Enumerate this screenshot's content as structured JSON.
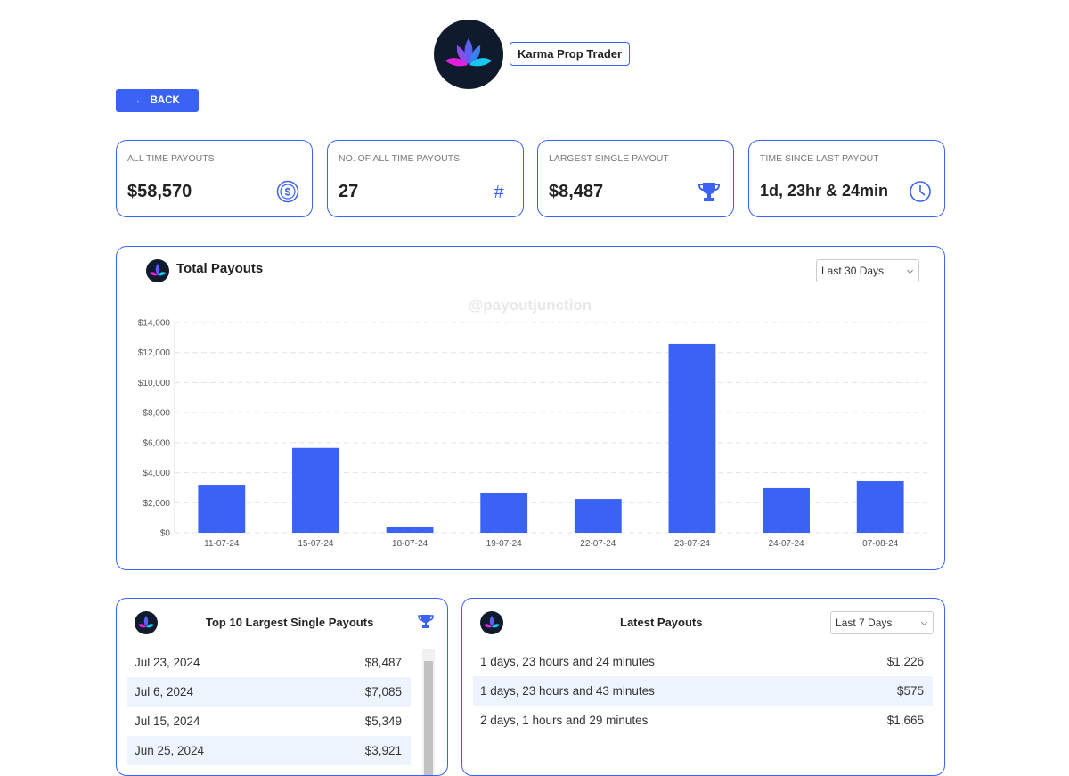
{
  "header": {
    "brand": "Karma Prop Trader",
    "back": "BACK"
  },
  "stats": [
    {
      "label": "ALL TIME PAYOUTS",
      "value": "$58,570"
    },
    {
      "label": "NO. OF ALL TIME PAYOUTS",
      "value": "27"
    },
    {
      "label": "LARGEST SINGLE PAYOUT",
      "value": "$8,487"
    },
    {
      "label": "TIME SINCE LAST PAYOUT",
      "value": "1d, 23hr & 24min"
    }
  ],
  "chart_data": {
    "type": "bar",
    "title": "Total Payouts",
    "watermark": "@payoutjunction",
    "filter": "Last 30 Days",
    "categories": [
      "11-07-24",
      "15-07-24",
      "18-07-24",
      "19-07-24",
      "22-07-24",
      "23-07-24",
      "24-07-24",
      "07-08-24"
    ],
    "values": [
      3200,
      5650,
      360,
      2670,
      2250,
      12580,
      2970,
      3440
    ],
    "color": "#3a62f5",
    "ylim": [
      0,
      14000
    ],
    "yticks": [
      {
        "value": 0,
        "label": "$0"
      },
      {
        "value": 2000,
        "label": "$2,000"
      },
      {
        "value": 4000,
        "label": "$4,000"
      },
      {
        "value": 6000,
        "label": "$6,000"
      },
      {
        "value": 8000,
        "label": "$8,000"
      },
      {
        "value": 10000,
        "label": "$10,000"
      },
      {
        "value": 12000,
        "label": "$12,000"
      },
      {
        "value": 14000,
        "label": "$14,000"
      }
    ],
    "grid": true
  },
  "top_payouts": {
    "title": "Top 10 Largest Single Payouts",
    "rows": [
      [
        "Jul 23, 2024",
        "$8,487"
      ],
      [
        "Jul 6, 2024",
        "$7,085"
      ],
      [
        "Jul 15, 2024",
        "$5,349"
      ],
      [
        "Jun 25, 2024",
        "$3,921"
      ]
    ]
  },
  "latest_payouts": {
    "title": "Latest Payouts",
    "filter": "Last 7 Days",
    "rows": [
      [
        "1 days, 23 hours and 24 minutes",
        "$1,226"
      ],
      [
        "1 days, 23 hours and 43 minutes",
        "$575"
      ],
      [
        "2 days, 1 hours and 29 minutes",
        "$1,665"
      ]
    ]
  }
}
